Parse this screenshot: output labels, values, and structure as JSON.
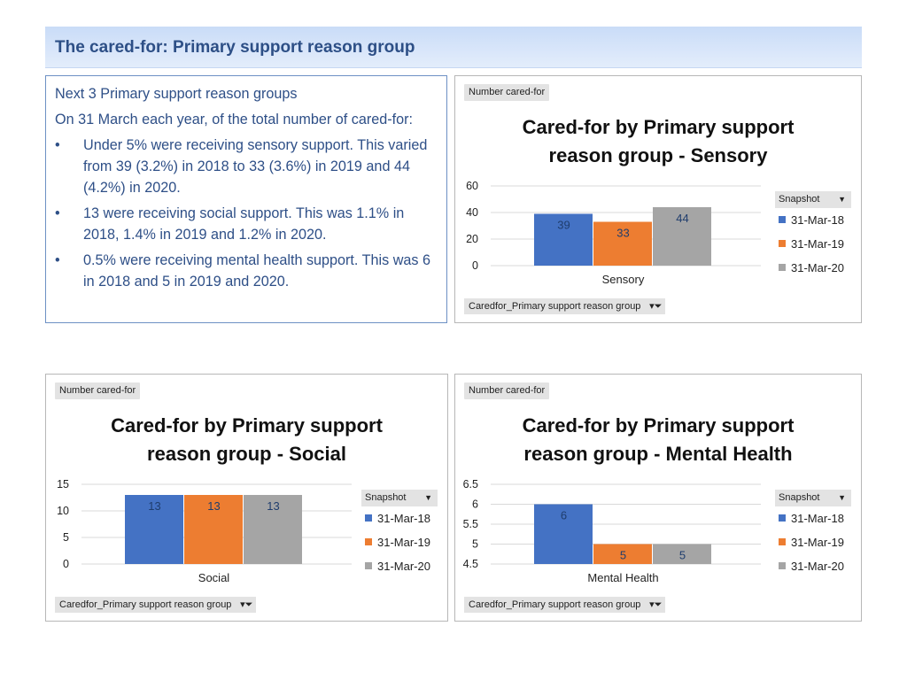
{
  "header": {
    "title": "The cared-for: Primary support reason group"
  },
  "summary": {
    "intro": "Next 3 Primary support reason groups",
    "lead": "On 31 March each year, of the total number of cared-for:",
    "bullets": [
      "Under 5% were receiving sensory support. This varied from 39 (3.2%) in 2018 to 33 (3.6%) in 2019 and 44 (4.2%) in 2020.",
      "13 were receiving social support. This was 1.1% in 2018, 1.4% in 2019 and 1.2% in 2020.",
      "0.5% were receiving mental health support. This was 6 in 2018 and 5 in 2019 and 2020."
    ]
  },
  "common": {
    "field_label": "Number cared-for",
    "legend_title": "Snapshot",
    "filter_label": "Caredfor_Primary support reason group",
    "legend_arrow": "▼",
    "filter_icon": "▾⏷"
  },
  "colors": {
    "s0": "#4472c4",
    "s1": "#ed7d31",
    "s2": "#a5a5a5"
  },
  "chart_data": [
    {
      "type": "bar",
      "title_line1": "Cared-for by Primary support",
      "title_line2": "reason group - Sensory",
      "categories": [
        "Sensory"
      ],
      "series": [
        {
          "name": "31-Mar-18",
          "values": [
            39
          ]
        },
        {
          "name": "31-Mar-19",
          "values": [
            33
          ]
        },
        {
          "name": "31-Mar-20",
          "values": [
            44
          ]
        }
      ],
      "ylim": [
        0,
        60
      ],
      "yticks": [
        "0",
        "20",
        "40",
        "60"
      ],
      "ylabel": "Number cared-for",
      "legend": "right"
    },
    {
      "type": "bar",
      "title_line1": "Cared-for by Primary support",
      "title_line2": "reason group - Social",
      "categories": [
        "Social"
      ],
      "series": [
        {
          "name": "31-Mar-18",
          "values": [
            13
          ]
        },
        {
          "name": "31-Mar-19",
          "values": [
            13
          ]
        },
        {
          "name": "31-Mar-20",
          "values": [
            13
          ]
        }
      ],
      "ylim": [
        0,
        15
      ],
      "yticks": [
        "0",
        "5",
        "10",
        "15"
      ],
      "ylabel": "Number cared-for",
      "legend": "right"
    },
    {
      "type": "bar",
      "title_line1": "Cared-for by Primary support",
      "title_line2": "reason group - Mental Health",
      "categories": [
        "Mental Health"
      ],
      "series": [
        {
          "name": "31-Mar-18",
          "values": [
            6
          ]
        },
        {
          "name": "31-Mar-19",
          "values": [
            5
          ]
        },
        {
          "name": "31-Mar-20",
          "values": [
            5
          ]
        }
      ],
      "ylim": [
        4.5,
        6.5
      ],
      "yticks": [
        "4.5",
        "5",
        "5.5",
        "6",
        "6.5"
      ],
      "ylabel": "Number cared-for",
      "legend": "right"
    }
  ]
}
